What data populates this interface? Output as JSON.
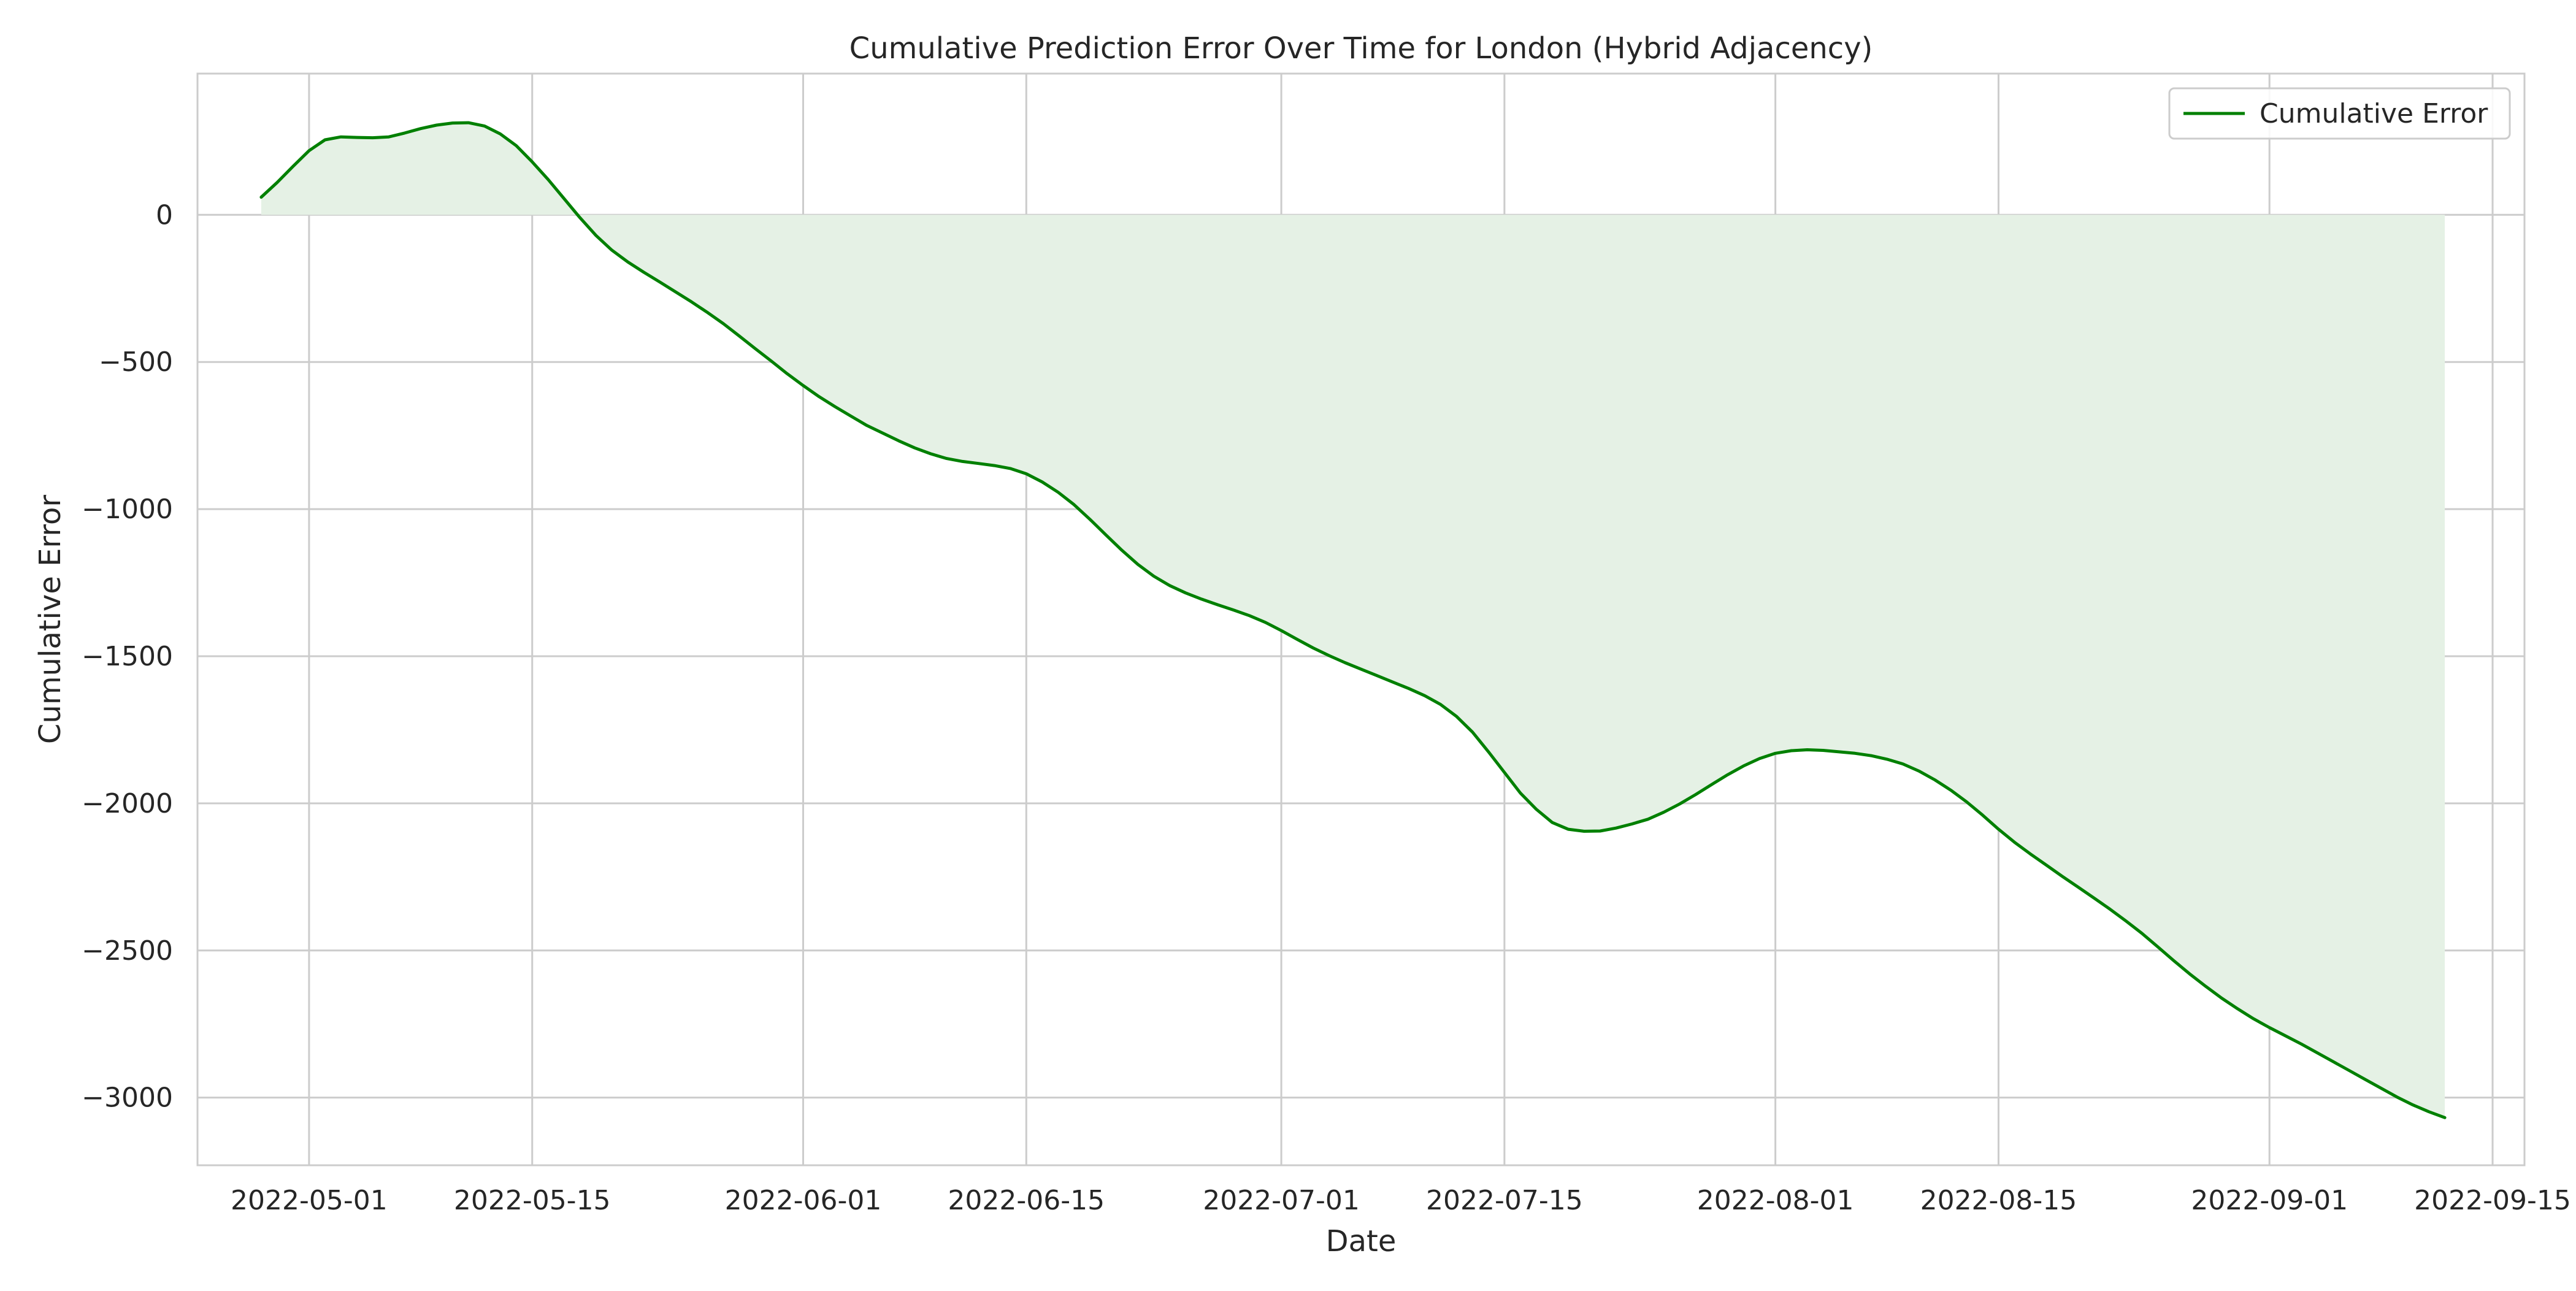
{
  "chart_data": {
    "type": "area",
    "title": "Cumulative Prediction Error Over Time for London (Hybrid Adjacency)",
    "xlabel": "Date",
    "ylabel": "Cumulative Error",
    "xlim": [
      "2022-04-24",
      "2022-09-17"
    ],
    "ylim": [
      -3230,
      480
    ],
    "x_ticks": [
      "2022-05-01",
      "2022-05-15",
      "2022-06-01",
      "2022-06-15",
      "2022-07-01",
      "2022-07-15",
      "2022-08-01",
      "2022-08-15",
      "2022-09-01",
      "2022-09-15"
    ],
    "y_ticks": [
      0,
      -500,
      -1000,
      -1500,
      -2000,
      -2500,
      -3000
    ],
    "y_tick_labels": [
      "0",
      "−500",
      "−1000",
      "−1500",
      "−2000",
      "−2500",
      "−3000"
    ],
    "grid": true,
    "legend": {
      "position": "top-right",
      "entries": [
        "Cumulative Error"
      ]
    },
    "fill_baseline": 0,
    "series": [
      {
        "name": "Cumulative Error",
        "color": "#008000",
        "fill_color": "#e5f1e5",
        "points": [
          [
            "2022-04-28",
            60
          ],
          [
            "2022-04-29",
            110
          ],
          [
            "2022-04-30",
            165
          ],
          [
            "2022-05-01",
            218
          ],
          [
            "2022-05-02",
            255
          ],
          [
            "2022-05-03",
            265
          ],
          [
            "2022-05-04",
            263
          ],
          [
            "2022-05-05",
            262
          ],
          [
            "2022-05-06",
            265
          ],
          [
            "2022-05-07",
            278
          ],
          [
            "2022-05-08",
            293
          ],
          [
            "2022-05-09",
            305
          ],
          [
            "2022-05-10",
            312
          ],
          [
            "2022-05-11",
            313
          ],
          [
            "2022-05-12",
            302
          ],
          [
            "2022-05-13",
            275
          ],
          [
            "2022-05-14",
            235
          ],
          [
            "2022-05-15",
            180
          ],
          [
            "2022-05-16",
            120
          ],
          [
            "2022-05-17",
            55
          ],
          [
            "2022-05-18",
            -10
          ],
          [
            "2022-05-19",
            -70
          ],
          [
            "2022-05-20",
            -120
          ],
          [
            "2022-05-21",
            -160
          ],
          [
            "2022-05-22",
            -195
          ],
          [
            "2022-05-23",
            -228
          ],
          [
            "2022-05-24",
            -262
          ],
          [
            "2022-05-25",
            -296
          ],
          [
            "2022-05-26",
            -332
          ],
          [
            "2022-05-27",
            -370
          ],
          [
            "2022-05-28",
            -412
          ],
          [
            "2022-05-29",
            -455
          ],
          [
            "2022-05-30",
            -497
          ],
          [
            "2022-05-31",
            -540
          ],
          [
            "2022-06-01",
            -580
          ],
          [
            "2022-06-02",
            -618
          ],
          [
            "2022-06-03",
            -652
          ],
          [
            "2022-06-04",
            -684
          ],
          [
            "2022-06-05",
            -716
          ],
          [
            "2022-06-06",
            -742
          ],
          [
            "2022-06-07",
            -768
          ],
          [
            "2022-06-08",
            -792
          ],
          [
            "2022-06-09",
            -812
          ],
          [
            "2022-06-10",
            -828
          ],
          [
            "2022-06-11",
            -838
          ],
          [
            "2022-06-12",
            -845
          ],
          [
            "2022-06-13",
            -852
          ],
          [
            "2022-06-14",
            -862
          ],
          [
            "2022-06-15",
            -880
          ],
          [
            "2022-06-16",
            -908
          ],
          [
            "2022-06-17",
            -943
          ],
          [
            "2022-06-18",
            -985
          ],
          [
            "2022-06-19",
            -1035
          ],
          [
            "2022-06-20",
            -1088
          ],
          [
            "2022-06-21",
            -1140
          ],
          [
            "2022-06-22",
            -1188
          ],
          [
            "2022-06-23",
            -1228
          ],
          [
            "2022-06-24",
            -1260
          ],
          [
            "2022-06-25",
            -1285
          ],
          [
            "2022-06-26",
            -1306
          ],
          [
            "2022-06-27",
            -1325
          ],
          [
            "2022-06-28",
            -1343
          ],
          [
            "2022-06-29",
            -1362
          ],
          [
            "2022-06-30",
            -1385
          ],
          [
            "2022-07-01",
            -1413
          ],
          [
            "2022-07-02",
            -1443
          ],
          [
            "2022-07-03",
            -1472
          ],
          [
            "2022-07-04",
            -1498
          ],
          [
            "2022-07-05",
            -1522
          ],
          [
            "2022-07-06",
            -1544
          ],
          [
            "2022-07-07",
            -1566
          ],
          [
            "2022-07-08",
            -1588
          ],
          [
            "2022-07-09",
            -1610
          ],
          [
            "2022-07-10",
            -1634
          ],
          [
            "2022-07-11",
            -1664
          ],
          [
            "2022-07-12",
            -1705
          ],
          [
            "2022-07-13",
            -1758
          ],
          [
            "2022-07-14",
            -1825
          ],
          [
            "2022-07-15",
            -1895
          ],
          [
            "2022-07-16",
            -1965
          ],
          [
            "2022-07-17",
            -2020
          ],
          [
            "2022-07-18",
            -2065
          ],
          [
            "2022-07-19",
            -2088
          ],
          [
            "2022-07-20",
            -2095
          ],
          [
            "2022-07-21",
            -2094
          ],
          [
            "2022-07-22",
            -2084
          ],
          [
            "2022-07-23",
            -2070
          ],
          [
            "2022-07-24",
            -2054
          ],
          [
            "2022-07-25",
            -2030
          ],
          [
            "2022-07-26",
            -2002
          ],
          [
            "2022-07-27",
            -1970
          ],
          [
            "2022-07-28",
            -1936
          ],
          [
            "2022-07-29",
            -1903
          ],
          [
            "2022-07-30",
            -1873
          ],
          [
            "2022-07-31",
            -1848
          ],
          [
            "2022-08-01",
            -1830
          ],
          [
            "2022-08-02",
            -1821
          ],
          [
            "2022-08-03",
            -1818
          ],
          [
            "2022-08-04",
            -1820
          ],
          [
            "2022-08-05",
            -1825
          ],
          [
            "2022-08-06",
            -1830
          ],
          [
            "2022-08-07",
            -1838
          ],
          [
            "2022-08-08",
            -1850
          ],
          [
            "2022-08-09",
            -1866
          ],
          [
            "2022-08-10",
            -1890
          ],
          [
            "2022-08-11",
            -1920
          ],
          [
            "2022-08-12",
            -1955
          ],
          [
            "2022-08-13",
            -1995
          ],
          [
            "2022-08-14",
            -2040
          ],
          [
            "2022-08-15",
            -2088
          ],
          [
            "2022-08-16",
            -2132
          ],
          [
            "2022-08-17",
            -2172
          ],
          [
            "2022-08-18",
            -2210
          ],
          [
            "2022-08-19",
            -2248
          ],
          [
            "2022-08-20",
            -2285
          ],
          [
            "2022-08-21",
            -2322
          ],
          [
            "2022-08-22",
            -2360
          ],
          [
            "2022-08-23",
            -2400
          ],
          [
            "2022-08-24",
            -2442
          ],
          [
            "2022-08-25",
            -2488
          ],
          [
            "2022-08-26",
            -2535
          ],
          [
            "2022-08-27",
            -2580
          ],
          [
            "2022-08-28",
            -2622
          ],
          [
            "2022-08-29",
            -2662
          ],
          [
            "2022-08-30",
            -2698
          ],
          [
            "2022-08-31",
            -2732
          ],
          [
            "2022-09-01",
            -2762
          ],
          [
            "2022-09-02",
            -2790
          ],
          [
            "2022-09-03",
            -2818
          ],
          [
            "2022-09-04",
            -2848
          ],
          [
            "2022-09-05",
            -2878
          ],
          [
            "2022-09-06",
            -2908
          ],
          [
            "2022-09-07",
            -2938
          ],
          [
            "2022-09-08",
            -2968
          ],
          [
            "2022-09-09",
            -2998
          ],
          [
            "2022-09-10",
            -3025
          ],
          [
            "2022-09-11",
            -3048
          ],
          [
            "2022-09-12",
            -3068
          ]
        ]
      }
    ]
  }
}
